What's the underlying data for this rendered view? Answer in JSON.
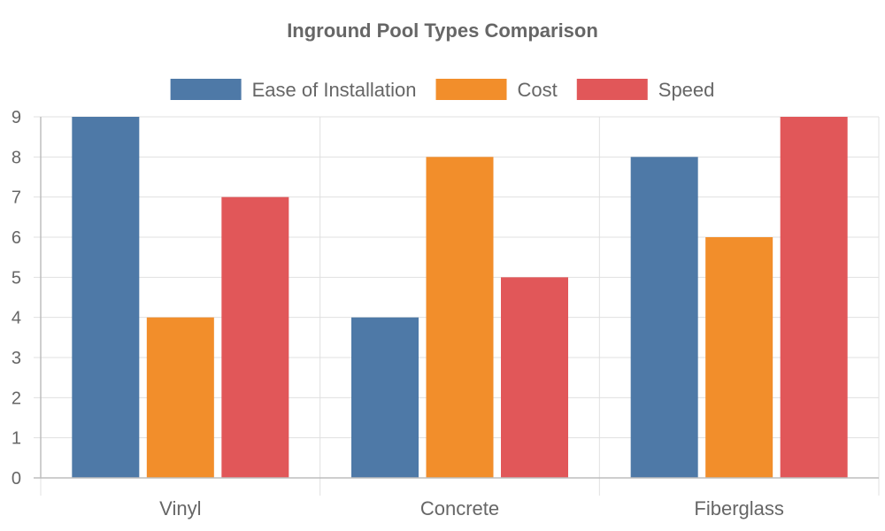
{
  "chart_data": {
    "type": "bar",
    "title": "Inground Pool Types Comparison",
    "categories": [
      "Vinyl",
      "Concrete",
      "Fiberglass"
    ],
    "series": [
      {
        "name": "Ease of Installation",
        "color": "#4e79a7",
        "values": [
          9,
          4,
          8
        ]
      },
      {
        "name": "Cost",
        "color": "#f28e2b",
        "values": [
          4,
          8,
          6
        ]
      },
      {
        "name": "Speed",
        "color": "#e15759",
        "values": [
          7,
          5,
          9
        ]
      }
    ],
    "ylim": [
      0,
      9
    ],
    "yticks": [
      0,
      1,
      2,
      3,
      4,
      5,
      6,
      7,
      8,
      9
    ],
    "grid": true,
    "legend_position": "top-center"
  }
}
